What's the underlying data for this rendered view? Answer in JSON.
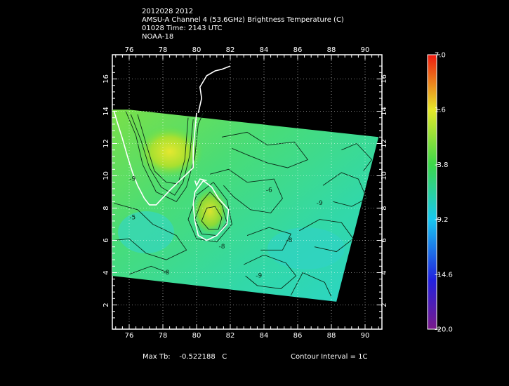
{
  "header": {
    "line1": "2012028 2012",
    "line2": "AMSU-A Channel 4 (53.6GHz) Brightness Temperature (C)",
    "line3": "01028 Time: 2143 UTC",
    "line4": "NOAA-18"
  },
  "map": {
    "lon_ticks": [
      "76",
      "78",
      "80",
      "82",
      "84",
      "86",
      "88",
      "90"
    ],
    "lat_ticks": [
      "2",
      "4",
      "6",
      "8",
      "10",
      "12",
      "14",
      "16"
    ],
    "lon_range": [
      75,
      91
    ],
    "lat_range": [
      0.5,
      17.5
    ],
    "contour_labels": [
      {
        "text": "-9",
        "lon": 76.2,
        "lat": 9.7
      },
      {
        "text": "-5",
        "lon": 76.2,
        "lat": 7.3
      },
      {
        "text": "-8",
        "lon": 78.2,
        "lat": 3.9
      },
      {
        "text": "-9",
        "lon": 83.7,
        "lat": 3.7
      },
      {
        "text": "-8",
        "lon": 81.5,
        "lat": 5.5
      },
      {
        "text": "-9",
        "lon": 87.3,
        "lat": 8.2
      },
      {
        "text": "-8",
        "lon": 85.5,
        "lat": 5.9
      },
      {
        "text": "-6",
        "lon": 84.3,
        "lat": 9.0
      }
    ]
  },
  "colorbar": {
    "labels": [
      "7.0",
      "1.6",
      "-3.8",
      "-9.2",
      "-14.6",
      "-20.0"
    ],
    "values": [
      7.0,
      1.6,
      -3.8,
      -9.2,
      -14.6,
      -20.0
    ],
    "colors": [
      "#8b1a8a",
      "#2e2ee8",
      "#18c8ee",
      "#3cd84a",
      "#ece82a",
      "#ee2a1a"
    ]
  },
  "footer": {
    "max_label": "Max Tb:",
    "max_value": "-0.522188",
    "max_unit": "C",
    "contour_text": "Contour Interval = 1C"
  }
}
